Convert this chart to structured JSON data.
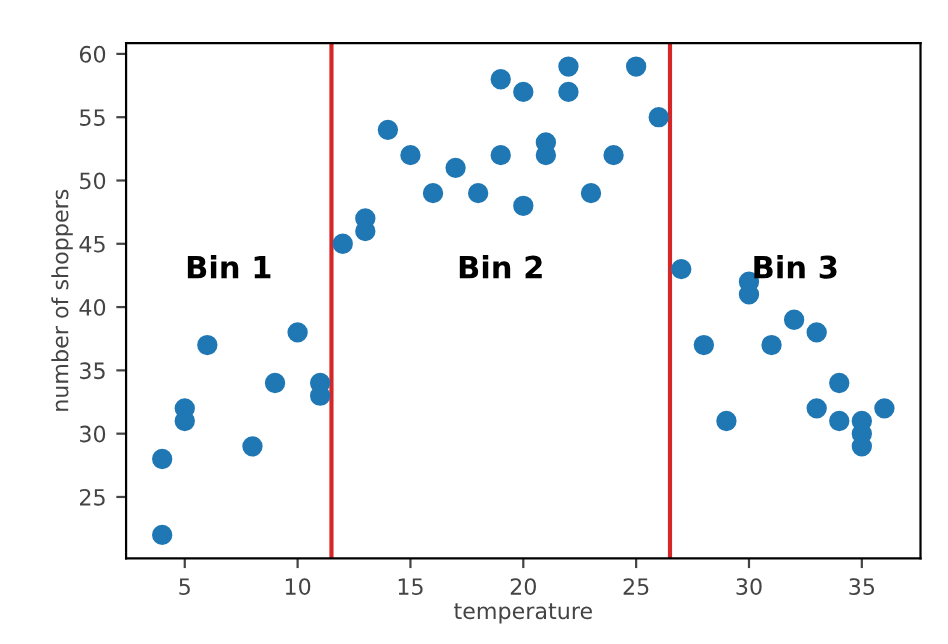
{
  "chart_data": {
    "type": "scatter",
    "xlabel": "temperature",
    "ylabel": "number of shoppers",
    "x": [
      4,
      4,
      5,
      5,
      6,
      8,
      9,
      10,
      11,
      11,
      12,
      13,
      13,
      14,
      15,
      16,
      17,
      18,
      19,
      19,
      20,
      20,
      21,
      21,
      22,
      22,
      23,
      24,
      25,
      26,
      27,
      28,
      29,
      30,
      30,
      31,
      32,
      33,
      33,
      34,
      34,
      35,
      35,
      35,
      36
    ],
    "series": [
      {
        "color": "#1f77b4",
        "values": [
          28,
          22,
          32,
          31,
          37,
          29,
          34,
          38,
          34,
          33,
          45,
          47,
          46,
          54,
          52,
          49,
          51,
          49,
          58,
          52,
          57,
          48,
          53,
          52,
          59,
          57,
          49,
          52,
          59,
          55,
          43,
          37,
          31,
          42,
          41,
          37,
          39,
          38,
          32,
          34,
          31,
          31,
          30,
          29,
          32
        ]
      }
    ],
    "xlim": [
      2.4,
      37.6
    ],
    "ylim": [
      20.15,
      60.85
    ],
    "xticks": [
      5,
      10,
      15,
      20,
      25,
      30,
      35
    ],
    "yticks": [
      25,
      30,
      35,
      40,
      45,
      50,
      55,
      60
    ],
    "ref_lines": [
      {
        "axis": "x",
        "value": 11.5,
        "color": "#d62728"
      },
      {
        "axis": "x",
        "value": 26.5,
        "color": "#d62728"
      }
    ],
    "annotations": [
      "Bin 1",
      "Bin 2",
      "Bin 3"
    ],
    "marker": "circle",
    "grid": false,
    "legend": false
  }
}
